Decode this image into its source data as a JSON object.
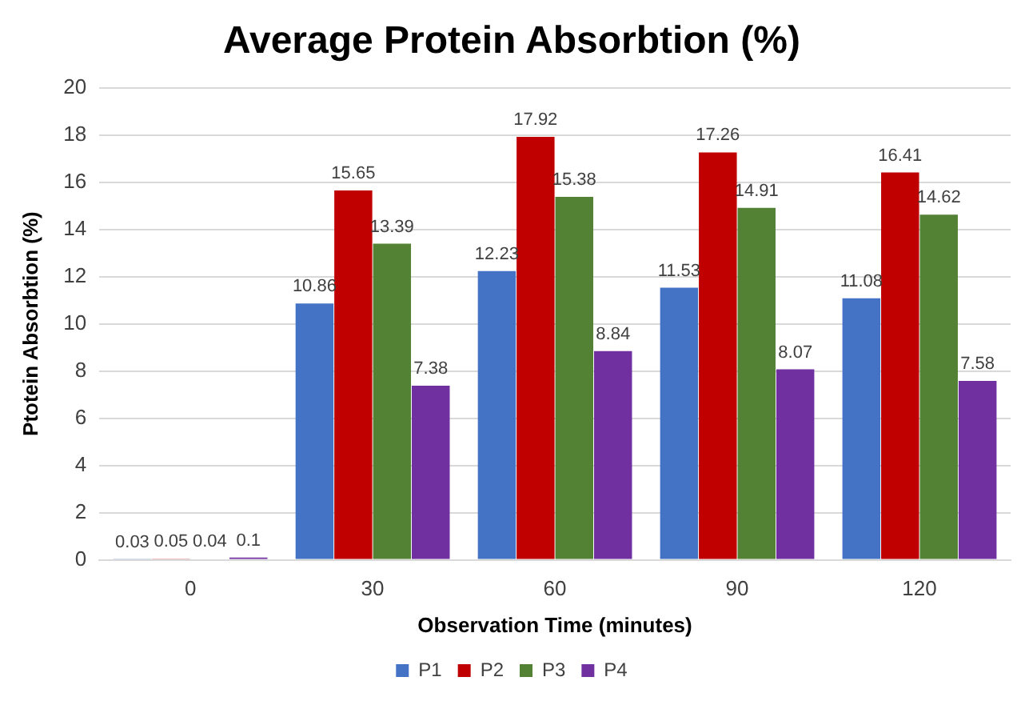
{
  "chart_data": {
    "type": "bar",
    "title": "Average Protein Absorbtion (%)",
    "xlabel": "Observation Time (minutes)",
    "ylabel": "Ptotein Absorbtion (%)",
    "categories": [
      "0",
      "30",
      "60",
      "90",
      "120"
    ],
    "series": [
      {
        "name": "P1",
        "color": "#4472c4",
        "values": [
          0.03,
          10.86,
          12.23,
          11.53,
          11.08
        ]
      },
      {
        "name": "P2",
        "color": "#c00000",
        "values": [
          0.05,
          15.65,
          17.92,
          17.26,
          16.41
        ]
      },
      {
        "name": "P3",
        "color": "#548235",
        "values": [
          0.04,
          13.39,
          15.38,
          14.91,
          14.62
        ]
      },
      {
        "name": "P4",
        "color": "#7030a0",
        "values": [
          0.1,
          7.38,
          8.84,
          8.07,
          7.58
        ]
      }
    ],
    "ylim": [
      0,
      20
    ],
    "yticks": [
      0,
      2,
      4,
      6,
      8,
      10,
      12,
      14,
      16,
      18,
      20
    ],
    "grid": "y",
    "legend": "bottom",
    "data_labels": true
  }
}
